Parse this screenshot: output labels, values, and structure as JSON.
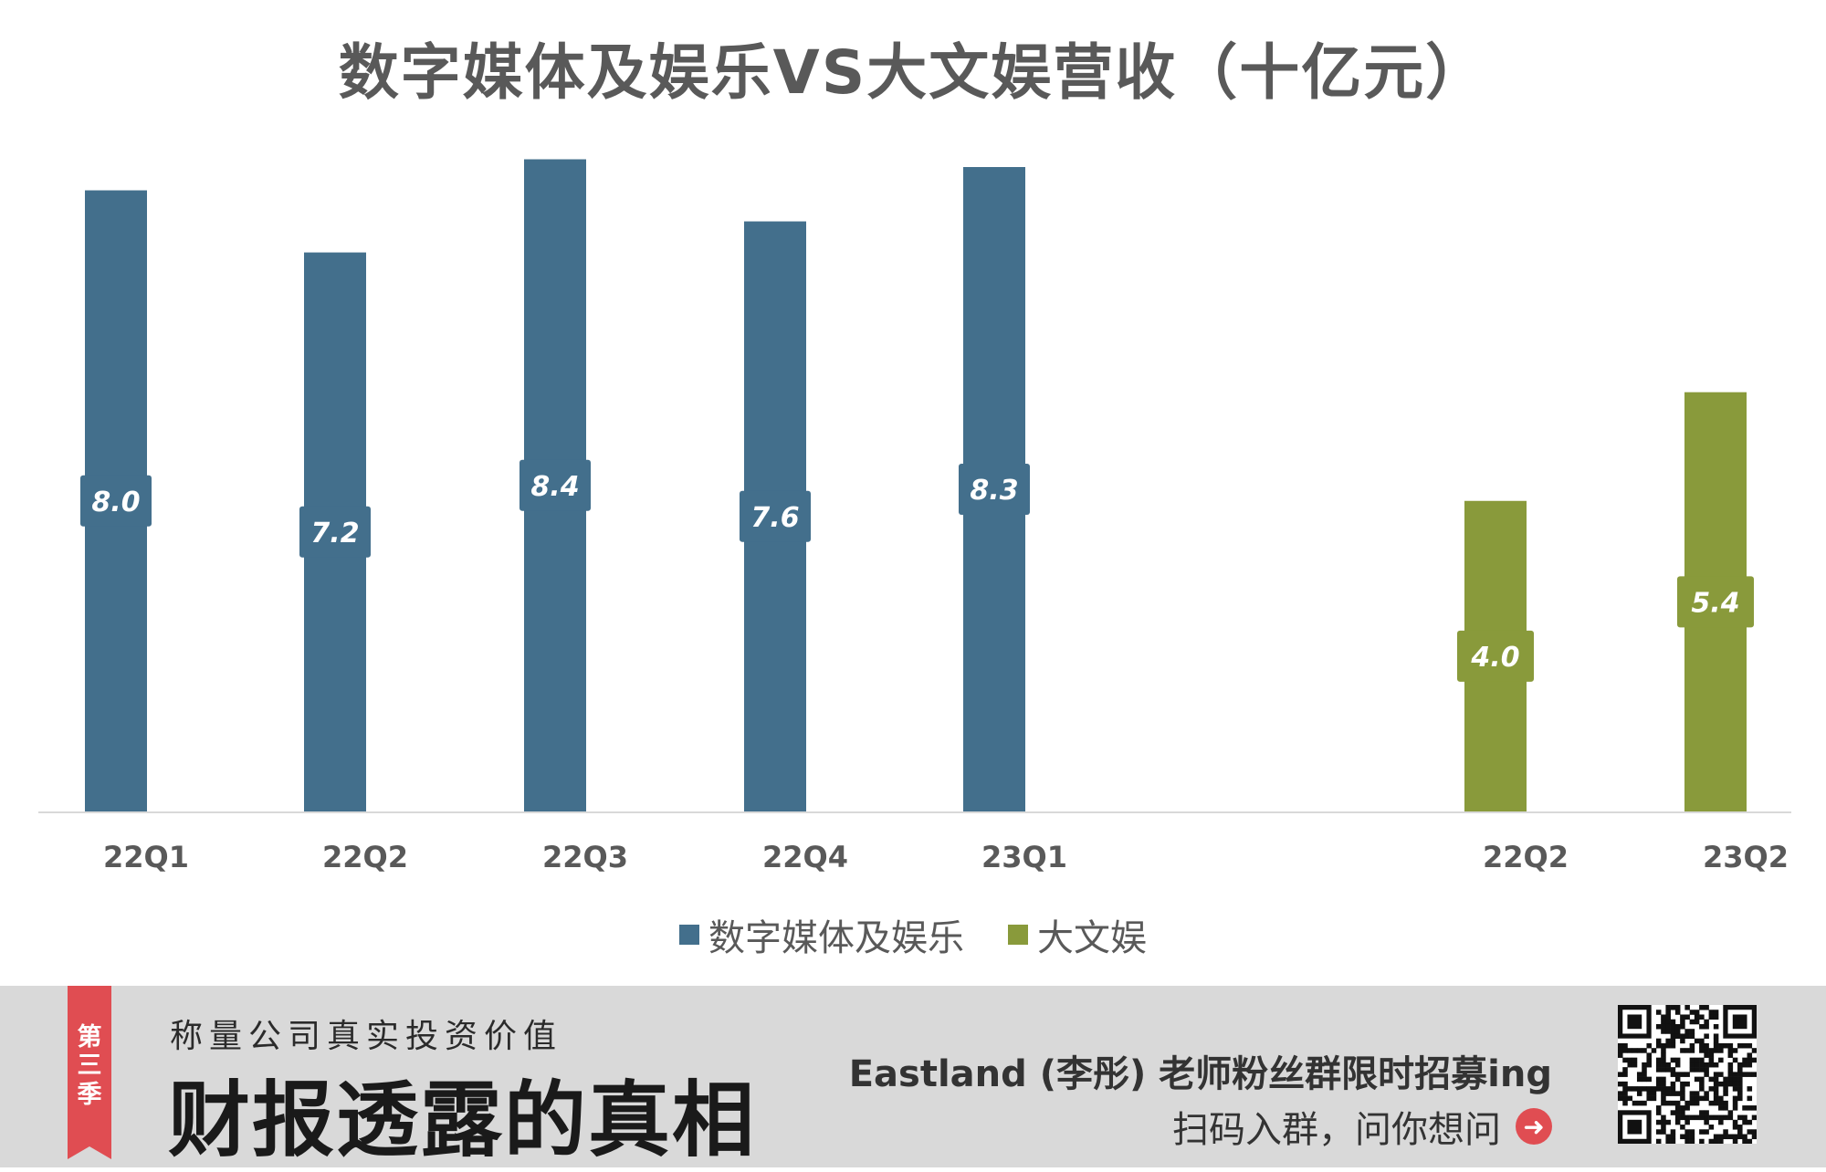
{
  "chart_data": {
    "type": "bar",
    "title": "数字媒体及娱乐VS大文娱营收（十亿元）",
    "series": [
      {
        "name": "数字媒体及娱乐",
        "color": "#436f8c",
        "categories": [
          "22Q1",
          "22Q2",
          "22Q3",
          "22Q4",
          "23Q1"
        ],
        "values": [
          8.0,
          7.2,
          8.4,
          7.6,
          8.3
        ],
        "labels": [
          "8.0",
          "7.2",
          "8.4",
          "7.6",
          "8.3"
        ]
      },
      {
        "name": "大文娱",
        "color": "#899a3b",
        "categories": [
          "22Q2",
          "23Q2"
        ],
        "values": [
          4.0,
          5.4
        ],
        "labels": [
          "4.0",
          "5.4"
        ]
      }
    ],
    "ylim": [
      0,
      8.5
    ],
    "grid": false,
    "legend_position": "bottom"
  },
  "banner": {
    "ribbon_text": [
      "第",
      "三",
      "季"
    ],
    "subtitle": "称量公司真实投资价值",
    "main_title": "财报透露的真相",
    "promo": "Eastland (李彤) 老师粉丝群限时招募ing",
    "cta": "扫码入群，问你想问",
    "cta_icon": "arrow-right-circle-icon",
    "qr_icon": "qr-code-icon"
  }
}
